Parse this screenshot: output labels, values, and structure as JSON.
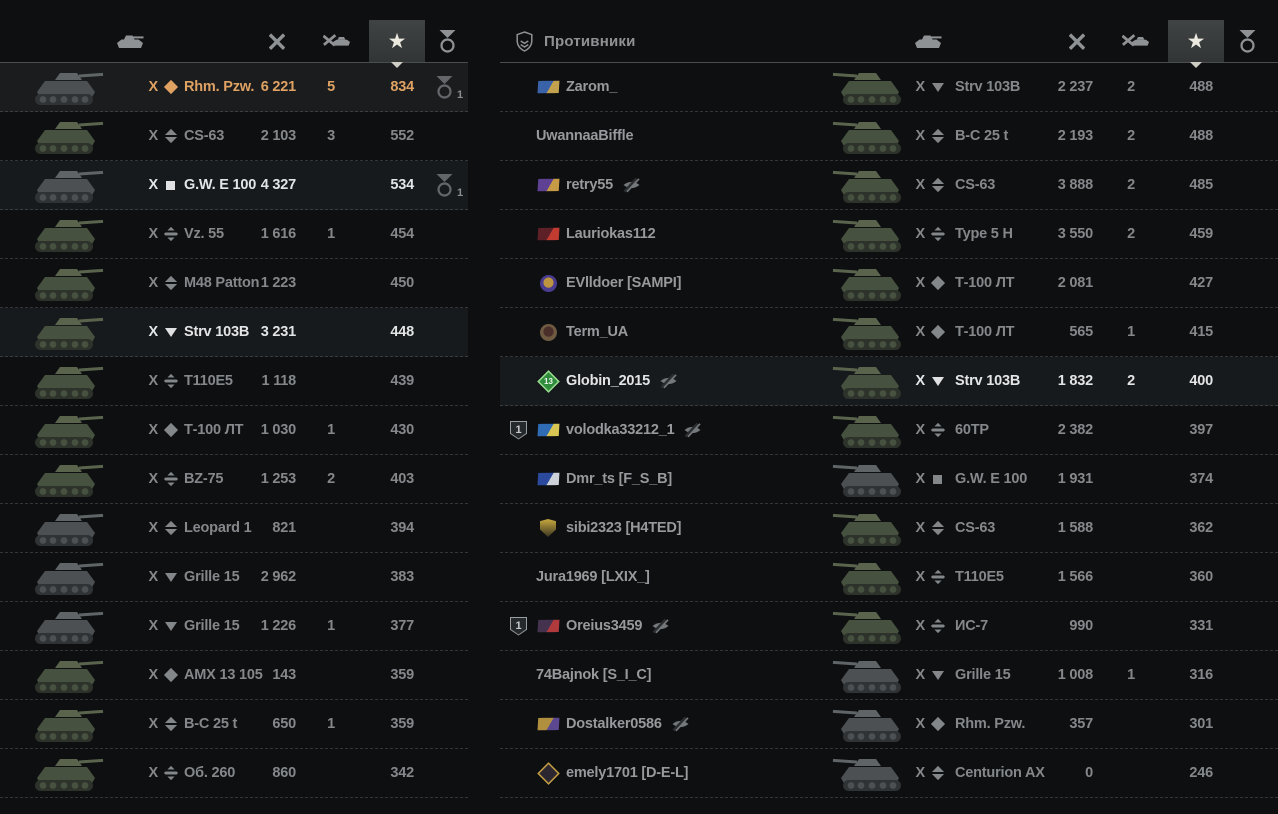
{
  "enemies_title": "Противники",
  "columns": {
    "vehicle": "vehicle",
    "damage": "damage",
    "frags": "frags",
    "xp": "xp",
    "medals": "medals",
    "sorted_by": "xp"
  },
  "colors": {
    "self_orange": "#e0a263",
    "bright": "#e2e4e6",
    "dim": "#85888b",
    "header": "#8f9295"
  },
  "allies": {
    "rows": [
      {
        "tier": "X",
        "cls": "light",
        "name": "Rhm. Pzw.",
        "dmg": "6 221",
        "frags": "5",
        "xp": "834",
        "medals": "1",
        "state": "self",
        "tone": "gray"
      },
      {
        "tier": "X",
        "cls": "medium",
        "name": "CS-63",
        "dmg": "2 103",
        "frags": "3",
        "xp": "552",
        "medals": "",
        "state": "",
        "tone": "green"
      },
      {
        "tier": "X",
        "cls": "spg",
        "name": "G.W. E 100",
        "dmg": "4 327",
        "frags": "",
        "xp": "534",
        "medals": "1",
        "state": "hl",
        "tone": "gray"
      },
      {
        "tier": "X",
        "cls": "heavy",
        "name": "Vz. 55",
        "dmg": "1 616",
        "frags": "1",
        "xp": "454",
        "medals": "",
        "state": "",
        "tone": "green"
      },
      {
        "tier": "X",
        "cls": "medium",
        "name": "M48 Patton",
        "dmg": "1 223",
        "frags": "",
        "xp": "450",
        "medals": "",
        "state": "",
        "tone": "green"
      },
      {
        "tier": "X",
        "cls": "td",
        "name": "Strv 103B",
        "dmg": "3 231",
        "frags": "",
        "xp": "448",
        "medals": "",
        "state": "hl",
        "tone": "green"
      },
      {
        "tier": "X",
        "cls": "heavy",
        "name": "T110E5",
        "dmg": "1 118",
        "frags": "",
        "xp": "439",
        "medals": "",
        "state": "",
        "tone": "green"
      },
      {
        "tier": "X",
        "cls": "light",
        "name": "Т-100 ЛТ",
        "dmg": "1 030",
        "frags": "1",
        "xp": "430",
        "medals": "",
        "state": "",
        "tone": "green"
      },
      {
        "tier": "X",
        "cls": "heavy",
        "name": "BZ-75",
        "dmg": "1 253",
        "frags": "2",
        "xp": "403",
        "medals": "",
        "state": "",
        "tone": "green"
      },
      {
        "tier": "X",
        "cls": "medium",
        "name": "Leopard 1",
        "dmg": "821",
        "frags": "",
        "xp": "394",
        "medals": "",
        "state": "",
        "tone": "gray"
      },
      {
        "tier": "X",
        "cls": "td",
        "name": "Grille 15",
        "dmg": "2 962",
        "frags": "",
        "xp": "383",
        "medals": "",
        "state": "",
        "tone": "gray"
      },
      {
        "tier": "X",
        "cls": "td",
        "name": "Grille 15",
        "dmg": "1 226",
        "frags": "1",
        "xp": "377",
        "medals": "",
        "state": "",
        "tone": "gray"
      },
      {
        "tier": "X",
        "cls": "light",
        "name": "AMX 13 105",
        "dmg": "143",
        "frags": "",
        "xp": "359",
        "medals": "",
        "state": "",
        "tone": "green"
      },
      {
        "tier": "X",
        "cls": "medium",
        "name": "B-C 25 t",
        "dmg": "650",
        "frags": "1",
        "xp": "359",
        "medals": "",
        "state": "",
        "tone": "green"
      },
      {
        "tier": "X",
        "cls": "heavy",
        "name": "Об. 260",
        "dmg": "860",
        "frags": "",
        "xp": "342",
        "medals": "",
        "state": "",
        "tone": "green"
      }
    ]
  },
  "enemies": {
    "rows": [
      {
        "player": "Zarom_",
        "platoon": "",
        "hidden": false,
        "emblem": {
          "shape": "flag",
          "c1": "#3a62a8",
          "c2": "#c2a24e",
          "text": ""
        },
        "tier": "X",
        "cls": "td",
        "name": "Strv 103B",
        "dmg": "2 237",
        "frags": "2",
        "xp": "488",
        "medals": "",
        "state": "",
        "tone": "green"
      },
      {
        "player": "UwannaaBiffle",
        "platoon": "",
        "hidden": false,
        "emblem": null,
        "tier": "X",
        "cls": "medium",
        "name": "B-C 25 t",
        "dmg": "2 193",
        "frags": "2",
        "xp": "488",
        "medals": "",
        "state": "",
        "tone": "green"
      },
      {
        "player": "retry55",
        "platoon": "",
        "hidden": true,
        "emblem": {
          "shape": "flag",
          "c1": "#5e4193",
          "c2": "#c79a45",
          "text": ""
        },
        "tier": "X",
        "cls": "medium",
        "name": "CS-63",
        "dmg": "3 888",
        "frags": "2",
        "xp": "485",
        "medals": "",
        "state": "",
        "tone": "green"
      },
      {
        "player": "Lauriokas112",
        "platoon": "",
        "hidden": false,
        "emblem": {
          "shape": "flag",
          "c1": "#5d2026",
          "c2": "#c23b30",
          "text": ""
        },
        "tier": "X",
        "cls": "heavy",
        "name": "Type 5 H",
        "dmg": "3 550",
        "frags": "2",
        "xp": "459",
        "medals": "",
        "state": "",
        "tone": "green"
      },
      {
        "player": "EVlldoer [SAMPI]",
        "platoon": "",
        "hidden": false,
        "emblem": {
          "shape": "round",
          "c1": "#4a3d8f",
          "c2": "#bd9440",
          "text": ""
        },
        "tier": "X",
        "cls": "light",
        "name": "Т-100 ЛТ",
        "dmg": "2 081",
        "frags": "",
        "xp": "427",
        "medals": "",
        "state": "",
        "tone": "green"
      },
      {
        "player": "Term_UA",
        "platoon": "",
        "hidden": false,
        "emblem": {
          "shape": "round",
          "c1": "#6d5a41",
          "c2": "#4a2e2a",
          "text": ""
        },
        "tier": "X",
        "cls": "light",
        "name": "Т-100 ЛТ",
        "dmg": "565",
        "frags": "1",
        "xp": "415",
        "medals": "",
        "state": "",
        "tone": "green"
      },
      {
        "player": "Globin_2015",
        "platoon": "",
        "hidden": true,
        "emblem": {
          "shape": "diamond",
          "c1": "#2e8c3c",
          "c2": "#9adf8f",
          "text": "13"
        },
        "tier": "X",
        "cls": "td",
        "name": "Strv 103B",
        "dmg": "1 832",
        "frags": "2",
        "xp": "400",
        "medals": "",
        "state": "hl",
        "tone": "green"
      },
      {
        "player": "volodka33212_1",
        "platoon": "1",
        "hidden": true,
        "emblem": {
          "shape": "flag",
          "c1": "#2f6cb4",
          "c2": "#d9c553",
          "text": ""
        },
        "tier": "X",
        "cls": "heavy",
        "name": "60TP",
        "dmg": "2 382",
        "frags": "",
        "xp": "397",
        "medals": "",
        "state": "",
        "tone": "green"
      },
      {
        "player": "Dmr_ts [F_S_B]",
        "platoon": "",
        "hidden": false,
        "emblem": {
          "shape": "flag",
          "c1": "#2b4a9e",
          "c2": "#cdd3d8",
          "text": ""
        },
        "tier": "X",
        "cls": "spg",
        "name": "G.W. E 100",
        "dmg": "1 931",
        "frags": "",
        "xp": "374",
        "medals": "",
        "state": "",
        "tone": "gray"
      },
      {
        "player": "sibi2323 [H4TED]",
        "platoon": "",
        "hidden": false,
        "emblem": {
          "shape": "shield",
          "c1": "#c8a93f",
          "c2": "#3a3423",
          "text": ""
        },
        "tier": "X",
        "cls": "medium",
        "name": "CS-63",
        "dmg": "1 588",
        "frags": "",
        "xp": "362",
        "medals": "",
        "state": "",
        "tone": "green"
      },
      {
        "player": "Jura1969 [LXIX_]",
        "platoon": "",
        "hidden": false,
        "emblem": null,
        "tier": "X",
        "cls": "heavy",
        "name": "T110E5",
        "dmg": "1 566",
        "frags": "",
        "xp": "360",
        "medals": "",
        "state": "",
        "tone": "green"
      },
      {
        "player": "Oreius3459",
        "platoon": "1",
        "hidden": true,
        "emblem": {
          "shape": "flag",
          "c1": "#45324e",
          "c2": "#b03a3c",
          "text": ""
        },
        "tier": "X",
        "cls": "heavy",
        "name": "ИС-7",
        "dmg": "990",
        "frags": "",
        "xp": "331",
        "medals": "",
        "state": "",
        "tone": "green"
      },
      {
        "player": "74Bajnok [S_I_C]",
        "platoon": "",
        "hidden": false,
        "emblem": null,
        "tier": "X",
        "cls": "td",
        "name": "Grille 15",
        "dmg": "1 008",
        "frags": "1",
        "xp": "316",
        "medals": "",
        "state": "",
        "tone": "gray"
      },
      {
        "player": "Dostalker0586",
        "platoon": "",
        "hidden": true,
        "emblem": {
          "shape": "flag",
          "c1": "#b08f3e",
          "c2": "#5c4791",
          "text": ""
        },
        "tier": "X",
        "cls": "light",
        "name": "Rhm. Pzw.",
        "dmg": "357",
        "frags": "",
        "xp": "301",
        "medals": "",
        "state": "",
        "tone": "gray"
      },
      {
        "player": "emely1701 [D-E-L]",
        "platoon": "",
        "hidden": false,
        "emblem": {
          "shape": "diamond",
          "c1": "#2b2630",
          "c2": "#c59f43",
          "text": ""
        },
        "tier": "X",
        "cls": "medium",
        "name": "Centurion AX",
        "dmg": "0",
        "frags": "",
        "xp": "246",
        "medals": "",
        "state": "",
        "tone": "gray"
      }
    ]
  }
}
